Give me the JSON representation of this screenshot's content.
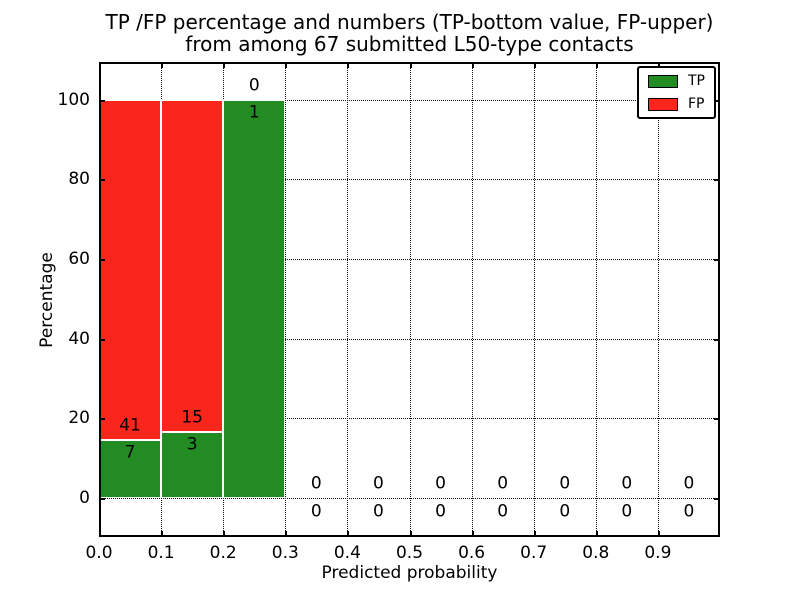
{
  "chart_data": {
    "type": "bar",
    "stacked": true,
    "title": "TP /FP percentage and numbers (TP-bottom value, FP-upper)\nfrom among 67 submitted L50-type contacts",
    "title_lines": [
      "TP /FP percentage and numbers (TP-bottom value, FP-upper)",
      "from among 67 submitted L50-type contacts"
    ],
    "xlabel": "Predicted probability",
    "ylabel": "Percentage",
    "bin_edges": [
      0.0,
      0.1,
      0.2,
      0.3,
      0.4,
      0.5,
      0.6,
      0.7,
      0.8,
      0.9,
      1.0
    ],
    "series": [
      {
        "name": "TP",
        "color": "#228b22",
        "counts": [
          7,
          3,
          1,
          0,
          0,
          0,
          0,
          0,
          0,
          0
        ]
      },
      {
        "name": "FP",
        "color": "#fa261b",
        "counts": [
          41,
          15,
          0,
          0,
          0,
          0,
          0,
          0,
          0,
          0
        ]
      }
    ],
    "bar_values_note": "bar heights are percentages per bin: count/(TP+FP)*100; FP count printed above TP count at the stack boundary",
    "x_tick_labels": [
      "0.0",
      "0.1",
      "0.2",
      "0.3",
      "0.4",
      "0.5",
      "0.6",
      "0.7",
      "0.8",
      "0.9"
    ],
    "y_ticks": [
      0,
      20,
      40,
      60,
      80,
      100
    ],
    "xlim": [
      0.0,
      1.0
    ],
    "ylim": [
      -9.8,
      109.5
    ],
    "grid": "dotted both axes",
    "legend_position": "upper right",
    "tick_direction": "in"
  }
}
